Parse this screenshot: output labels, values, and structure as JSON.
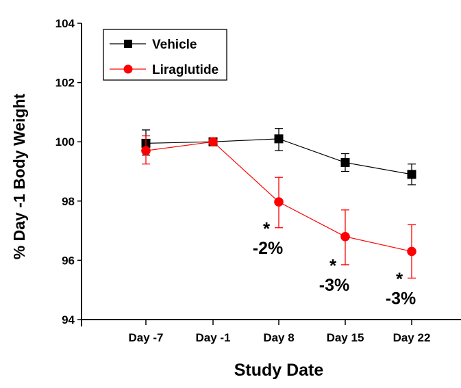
{
  "chart_data": {
    "type": "line",
    "title": "",
    "xlabel": "Study Date",
    "ylabel": "% Day -1 Body Weight",
    "categories": [
      "Day -7",
      "Day -1",
      "Day 8",
      "Day 15",
      "Day 22"
    ],
    "ylim": [
      94,
      104
    ],
    "yticks": [
      94,
      96,
      98,
      100,
      102,
      104
    ],
    "grid": false,
    "legend_position": "top-left",
    "series": [
      {
        "name": "Vehicle",
        "color": "#000000",
        "marker": "square",
        "values": [
          99.95,
          100.0,
          100.1,
          99.3,
          98.9
        ],
        "error_upper": [
          100.4,
          100.0,
          100.45,
          99.6,
          99.25
        ],
        "error_lower": [
          99.55,
          100.0,
          99.7,
          99.0,
          98.55
        ]
      },
      {
        "name": "Liraglutide",
        "color": "#ff0000",
        "marker": "circle",
        "values": [
          99.7,
          100.0,
          97.97,
          96.8,
          96.3
        ],
        "error_upper": [
          100.2,
          100.0,
          98.8,
          97.7,
          97.2
        ],
        "error_lower": [
          99.25,
          100.0,
          97.1,
          95.85,
          95.4
        ]
      }
    ],
    "annotations": [
      {
        "category": "Day 8",
        "star": "*",
        "label": "-2%"
      },
      {
        "category": "Day 15",
        "star": "*",
        "label": "-3%"
      },
      {
        "category": "Day 22",
        "star": "*",
        "label": "-3%"
      }
    ]
  }
}
